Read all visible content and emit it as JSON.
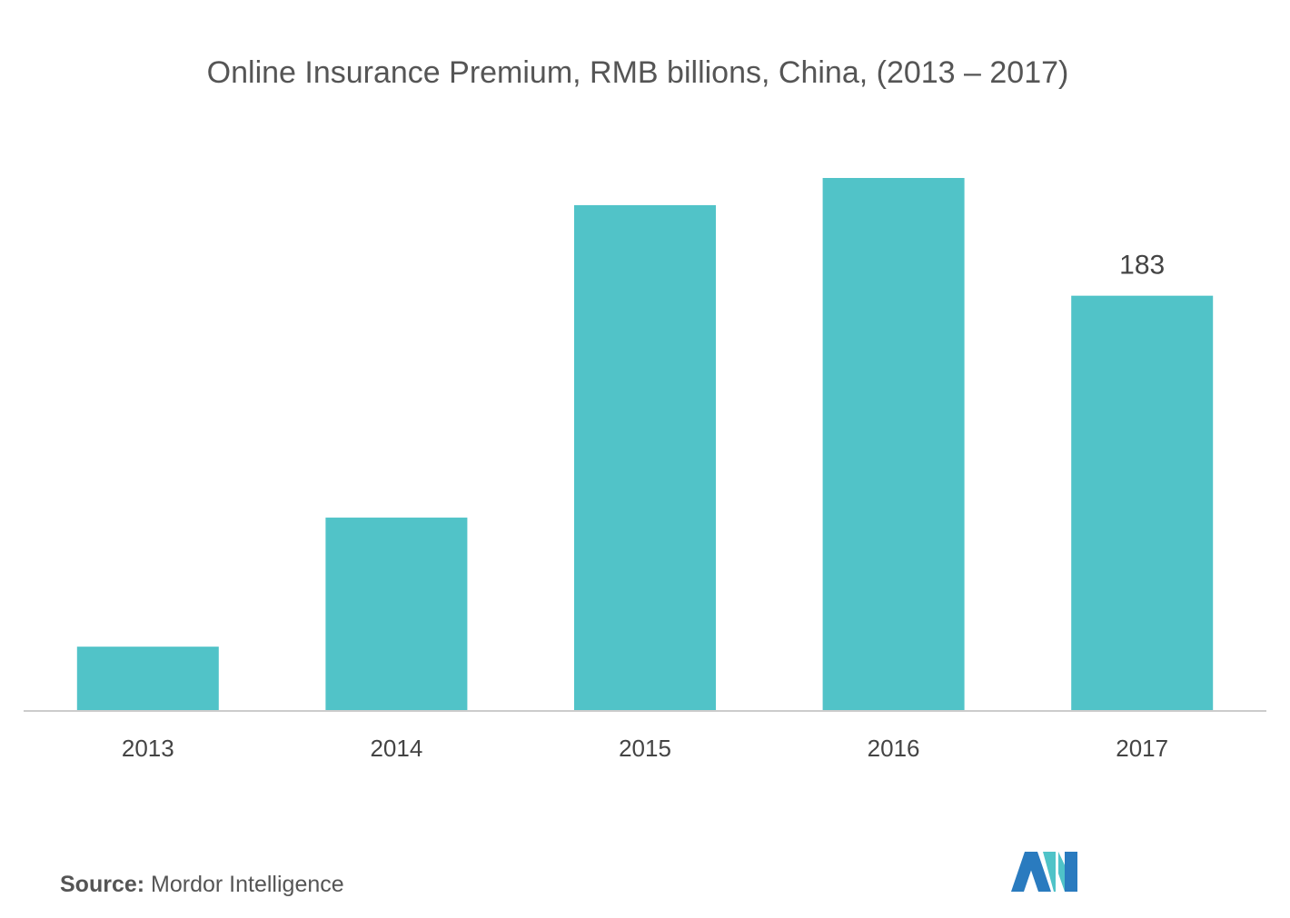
{
  "chart_data": {
    "type": "bar",
    "title": "Online Insurance Premium, RMB billions, China, (2013 – 2017)",
    "categories": [
      "2013",
      "2014",
      "2015",
      "2016",
      "2017"
    ],
    "values": [
      28,
      85,
      223,
      235,
      183
    ],
    "value_labels": [
      null,
      null,
      null,
      null,
      "183"
    ],
    "color": "#51c3c8"
  },
  "source": {
    "label": "Source:",
    "text": "Mordor Intelligence"
  }
}
